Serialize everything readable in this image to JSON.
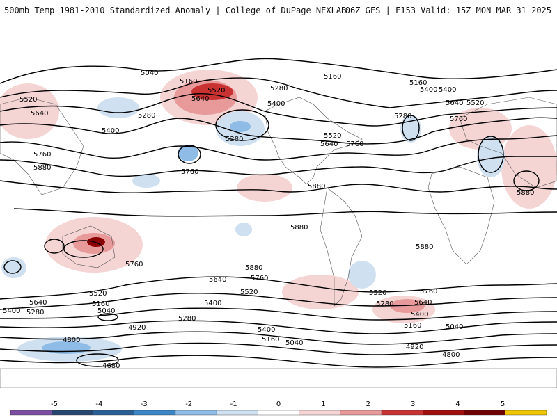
{
  "header": {
    "title_left": "500mb Temp 1981-2010 Standardized Anomaly | College of DuPage NEXLAB",
    "title_right": "06Z GFS | F153 Valid: 15Z MON MAR 31 2025"
  },
  "colors": {
    "ocean": "#ffffff",
    "warm_light": "#f5d4d4",
    "warm_mid": "#e89a9a",
    "warm_strong": "#c83232",
    "warm_extreme": "#8a0000",
    "cold_light": "#cfe0f1",
    "cold_mid": "#8fbce6",
    "cold_strong": "#3a86c8",
    "contour": "#000000",
    "coast": "#555555"
  },
  "contour_labels": [
    "5040",
    "5160",
    "5520",
    "5640",
    "5520",
    "5280",
    "5400",
    "5640",
    "5760",
    "5280",
    "5400",
    "5880",
    "5760",
    "5160",
    "5280",
    "5400",
    "5520",
    "5640",
    "5760",
    "5160",
    "5400",
    "5640",
    "5520",
    "5760",
    "5280",
    "5880",
    "5880",
    "5880",
    "5880",
    "5760",
    "5640",
    "5760",
    "5880",
    "5520",
    "5400",
    "5520",
    "5160",
    "5640",
    "5040",
    "5400",
    "5280",
    "4920",
    "4800",
    "4680",
    "5280",
    "5400",
    "5160",
    "5040",
    "5520",
    "5280",
    "5760",
    "5640",
    "5400",
    "5160",
    "5040",
    "4920",
    "4800"
  ],
  "colorbar": {
    "ticks": [
      "-5",
      "-4",
      "-3",
      "-2",
      "-1",
      "0",
      "1",
      "2",
      "3",
      "4",
      "5"
    ],
    "colors": [
      "#7b4ea3",
      "#27466f",
      "#2a5f95",
      "#3a86c8",
      "#8fbce6",
      "#cfe0f1",
      "#ffffff",
      "#f5d4d4",
      "#e89a9a",
      "#c83232",
      "#a10f0f",
      "#6e0000",
      "#f0c400"
    ]
  }
}
